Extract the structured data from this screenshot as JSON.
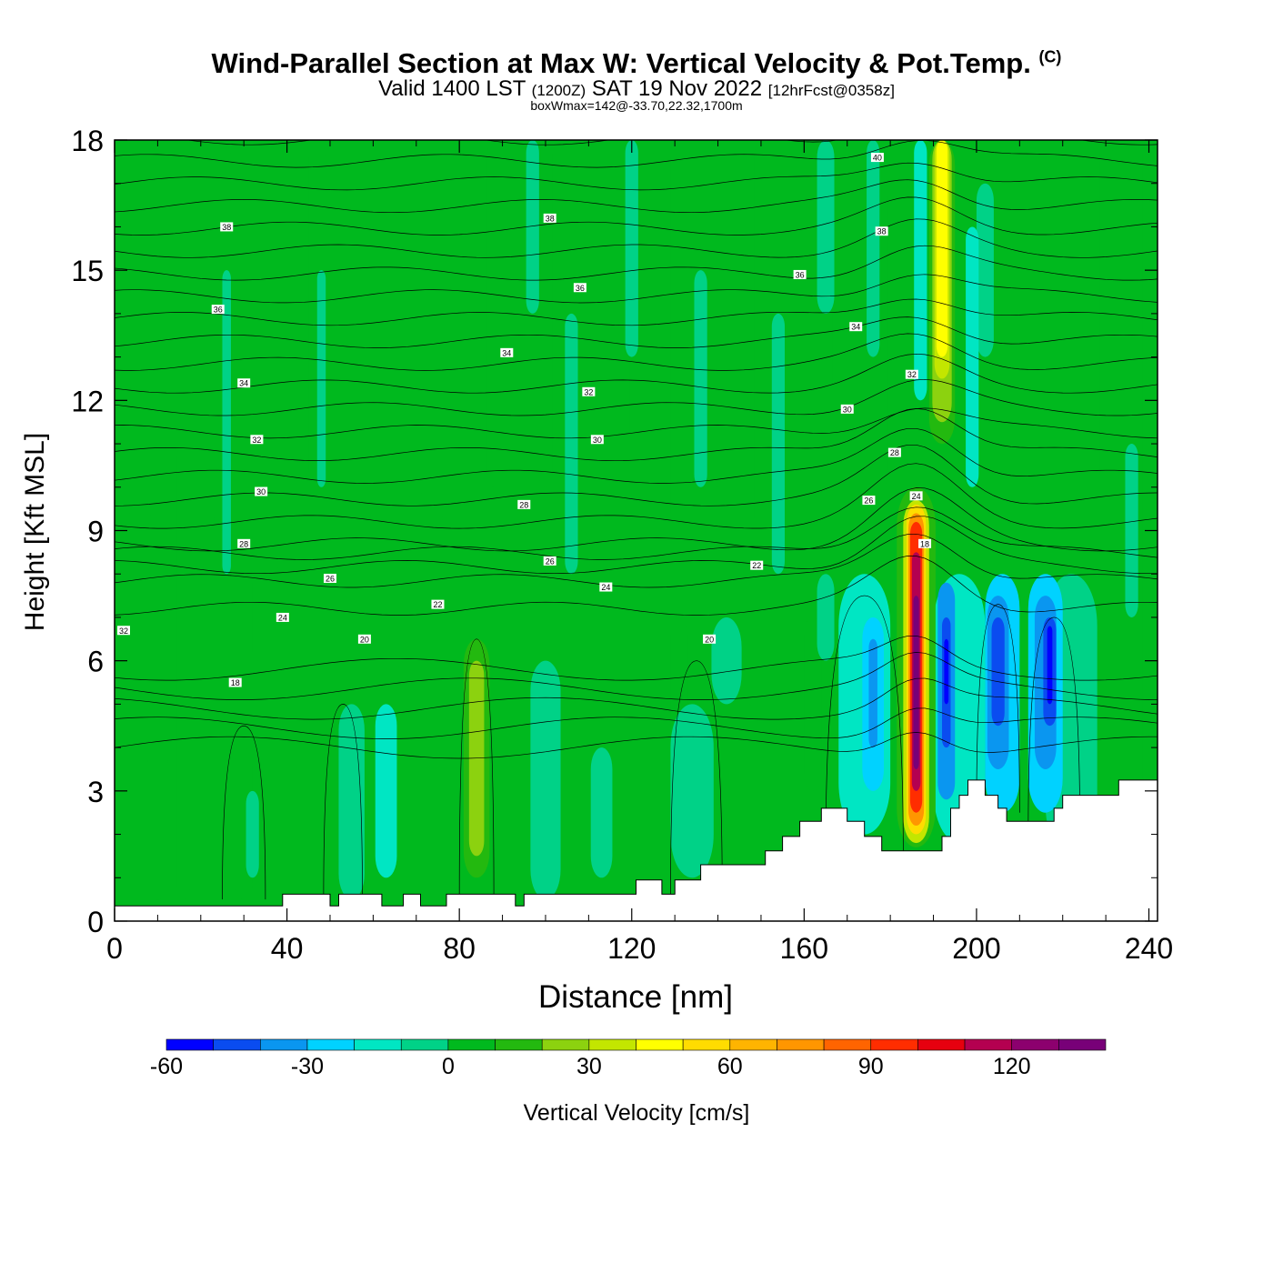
{
  "header": {
    "title": "Wind-Parallel Section at Max W: Vertical Velocity & Pot.Temp.",
    "copyright": "(C)",
    "subtitle_pre": "Valid 1400 LST",
    "subtitle_utc": "(1200Z)",
    "subtitle_mid": "SAT 19 Nov 2022",
    "subtitle_fcst": "[12hrFcst@0358z]",
    "subsubtitle": "boxWmax=142@-33.70,22.32,1700m"
  },
  "chart_data": {
    "type": "heatmap",
    "title": "Wind-Parallel Section at Max W: Vertical Velocity & Pot.Temp.",
    "xlabel": "Distance [nm]",
    "ylabel": "Height [Kft MSL]",
    "xlim": [
      0,
      242
    ],
    "ylim": [
      0,
      18
    ],
    "x_ticks": [
      "0",
      "40",
      "80",
      "120",
      "160",
      "200",
      "240"
    ],
    "y_ticks": [
      "0",
      "3",
      "6",
      "9",
      "12",
      "15",
      "18"
    ],
    "grid": false,
    "colorbar": {
      "label": "Vertical Velocity [cm/s]",
      "ticks": [
        "-60",
        "-30",
        "0",
        "30",
        "60",
        "90",
        "120"
      ],
      "levels": [
        -60,
        -50,
        -40,
        -30,
        -20,
        -10,
        0,
        10,
        20,
        30,
        40,
        50,
        60,
        70,
        80,
        90,
        100,
        110,
        120,
        130,
        140
      ],
      "colors": [
        "#0000ff",
        "#0a4cf0",
        "#0a96f0",
        "#00d2ff",
        "#00e6c3",
        "#00d287",
        "#00b91e",
        "#23b90f",
        "#8cd20f",
        "#c3e600",
        "#ffff00",
        "#ffdc00",
        "#ffb400",
        "#ff9600",
        "#ff6400",
        "#ff2d00",
        "#e6000f",
        "#b40050",
        "#8c006e",
        "#780078"
      ]
    },
    "features": {
      "updraft_core": {
        "x": 186,
        "z_range": [
          1.7,
          9.6
        ],
        "w_max_cms": 142
      },
      "stratospheric_updraft": {
        "x": 192,
        "z_range": [
          11.5,
          18
        ],
        "w_cms": 45
      },
      "downdraft_cores": [
        {
          "x": 192,
          "z": 6,
          "w_cms": -60
        },
        {
          "x": 205,
          "z": 6,
          "w_cms": -50
        },
        {
          "x": 216,
          "z": 6,
          "w_cms": -60
        },
        {
          "x": 176,
          "z": 5.5,
          "w_cms": -40
        }
      ],
      "weak_updraft": {
        "x": 84,
        "z_range": [
          2,
          5.5
        ],
        "w_cms": 25
      }
    },
    "theta_contour_labels": [
      {
        "x": 26,
        "y": 16.0,
        "text": "38"
      },
      {
        "x": 101,
        "y": 16.2,
        "text": "38"
      },
      {
        "x": 178,
        "y": 15.9,
        "text": "38"
      },
      {
        "x": 177,
        "y": 17.6,
        "text": "40"
      },
      {
        "x": 24,
        "y": 14.1,
        "text": "36"
      },
      {
        "x": 108,
        "y": 14.6,
        "text": "36"
      },
      {
        "x": 159,
        "y": 14.9,
        "text": "36"
      },
      {
        "x": 30,
        "y": 12.4,
        "text": "34"
      },
      {
        "x": 91,
        "y": 13.1,
        "text": "34"
      },
      {
        "x": 172,
        "y": 13.7,
        "text": "34"
      },
      {
        "x": 33,
        "y": 11.1,
        "text": "32"
      },
      {
        "x": 110,
        "y": 12.2,
        "text": "32"
      },
      {
        "x": 185,
        "y": 12.6,
        "text": "32"
      },
      {
        "x": 0,
        "y": 6.7,
        "text": "32"
      },
      {
        "x": 34,
        "y": 9.9,
        "text": "30"
      },
      {
        "x": 112,
        "y": 11.1,
        "text": "30"
      },
      {
        "x": 170,
        "y": 11.8,
        "text": "30"
      },
      {
        "x": 30,
        "y": 8.7,
        "text": "28"
      },
      {
        "x": 95,
        "y": 9.6,
        "text": "28"
      },
      {
        "x": 181,
        "y": 10.8,
        "text": "28"
      },
      {
        "x": 50,
        "y": 7.9,
        "text": "26"
      },
      {
        "x": 101,
        "y": 8.3,
        "text": "26"
      },
      {
        "x": 175,
        "y": 9.7,
        "text": "26"
      },
      {
        "x": 39,
        "y": 7.0,
        "text": "24"
      },
      {
        "x": 114,
        "y": 7.7,
        "text": "24"
      },
      {
        "x": 186,
        "y": 9.8,
        "text": "24"
      },
      {
        "x": 75,
        "y": 7.3,
        "text": "22"
      },
      {
        "x": 149,
        "y": 8.2,
        "text": "22"
      },
      {
        "x": 58,
        "y": 6.5,
        "text": "20"
      },
      {
        "x": 138,
        "y": 6.5,
        "text": "20"
      },
      {
        "x": 28,
        "y": 5.5,
        "text": "18"
      },
      {
        "x": 188,
        "y": 8.7,
        "text": "18"
      }
    ],
    "terrain_kft": [
      [
        0,
        0.35
      ],
      [
        39,
        0.35
      ],
      [
        39,
        0.62
      ],
      [
        50,
        0.62
      ],
      [
        50,
        0.35
      ],
      [
        52,
        0.35
      ],
      [
        52,
        0.62
      ],
      [
        62,
        0.62
      ],
      [
        62,
        0.35
      ],
      [
        67,
        0.35
      ],
      [
        67,
        0.62
      ],
      [
        71,
        0.62
      ],
      [
        71,
        0.35
      ],
      [
        77,
        0.35
      ],
      [
        77,
        0.62
      ],
      [
        93,
        0.62
      ],
      [
        93,
        0.35
      ],
      [
        95,
        0.35
      ],
      [
        95,
        0.62
      ],
      [
        121,
        0.62
      ],
      [
        121,
        0.95
      ],
      [
        127,
        0.95
      ],
      [
        127,
        0.62
      ],
      [
        130,
        0.62
      ],
      [
        130,
        0.95
      ],
      [
        136,
        0.95
      ],
      [
        136,
        1.3
      ],
      [
        151,
        1.3
      ],
      [
        151,
        1.62
      ],
      [
        155,
        1.62
      ],
      [
        155,
        1.95
      ],
      [
        159,
        1.95
      ],
      [
        159,
        2.3
      ],
      [
        164,
        2.3
      ],
      [
        164,
        2.6
      ],
      [
        170,
        2.6
      ],
      [
        170,
        2.3
      ],
      [
        174,
        2.3
      ],
      [
        174,
        1.95
      ],
      [
        178,
        1.95
      ],
      [
        178,
        1.62
      ],
      [
        192,
        1.62
      ],
      [
        192,
        1.95
      ],
      [
        194,
        1.95
      ],
      [
        194,
        2.6
      ],
      [
        196,
        2.6
      ],
      [
        196,
        2.9
      ],
      [
        198,
        2.9
      ],
      [
        198,
        3.25
      ],
      [
        202,
        3.25
      ],
      [
        202,
        2.9
      ],
      [
        205,
        2.9
      ],
      [
        205,
        2.6
      ],
      [
        207,
        2.6
      ],
      [
        207,
        2.3
      ],
      [
        218,
        2.3
      ],
      [
        218,
        2.6
      ],
      [
        220,
        2.6
      ],
      [
        220,
        2.9
      ],
      [
        233,
        2.9
      ],
      [
        233,
        3.25
      ],
      [
        242,
        3.25
      ]
    ]
  }
}
